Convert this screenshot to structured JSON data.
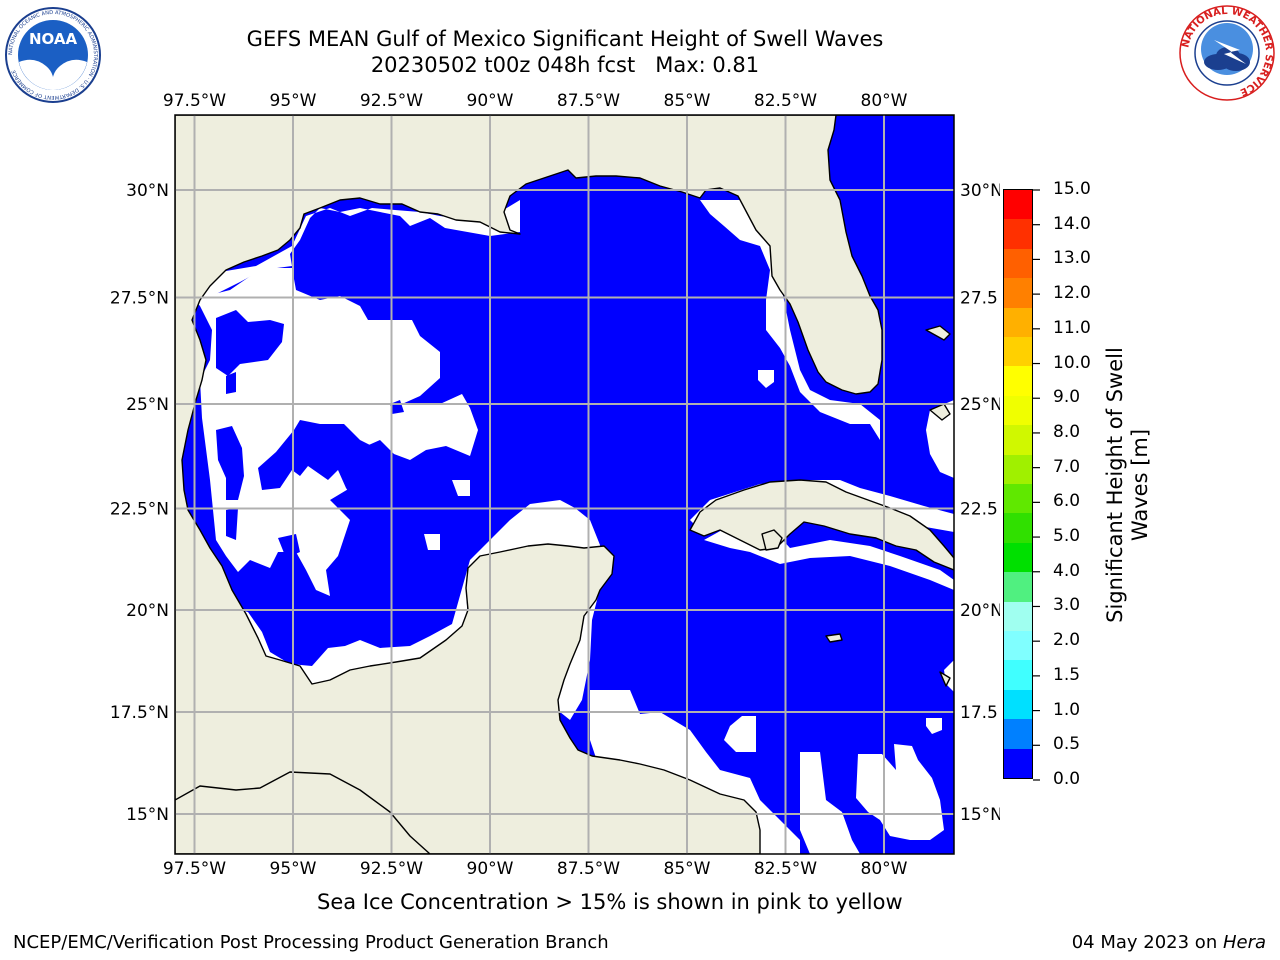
{
  "title": {
    "line1": "GEFS MEAN Gulf of Mexico Significant Height of Swell Waves",
    "line2": "20230502 t00z 048h fcst   Max: 0.81"
  },
  "logos": {
    "noaa": {
      "text": "NOAA",
      "ring_text": "NATIONAL OCEANIC AND ATMOSPHERIC ADMINISTRATION · U.S. DEPARTMENT OF COMMERCE"
    },
    "nws": {
      "ring_text": "NATIONAL WEATHER SERVICE"
    }
  },
  "map": {
    "lon_labels": [
      "97.5°W",
      "95°W",
      "92.5°W",
      "90°W",
      "87.5°W",
      "85°W",
      "82.5°W",
      "80°W"
    ],
    "lat_labels_left": [
      "30°N",
      "27.5°N",
      "25°N",
      "22.5°N",
      "20°N",
      "17.5°N",
      "15°N"
    ],
    "lat_labels_right": [
      "30°N",
      "27.5",
      "25°N",
      "22.5",
      "20°N",
      "17.5",
      "15°N"
    ],
    "colors": {
      "land": "#eeeede",
      "swell_lt_0_5": "#0000ff",
      "swell_0_5_to_1_0": "#0080ff",
      "no_data": "#ffffff",
      "grid": "#b0b0b0"
    }
  },
  "colorbar": {
    "labels": [
      "15.0",
      "14.0",
      "13.0",
      "12.0",
      "11.0",
      "10.0",
      "9.0",
      "8.0",
      "7.0",
      "6.0",
      "5.0",
      "4.0",
      "3.0",
      "2.0",
      "1.5",
      "1.0",
      "0.5",
      "0.0"
    ],
    "colors_bottom_to_top": [
      "#0000ff",
      "#0080ff",
      "#00e0ff",
      "#40ffff",
      "#80ffff",
      "#a0fff0",
      "#50f080",
      "#00e000",
      "#30e000",
      "#60e800",
      "#a0f000",
      "#d0f800",
      "#f0ff00",
      "#ffff00",
      "#ffd000",
      "#ffb000",
      "#ff8000",
      "#ff6000",
      "#ff3000",
      "#ff0000"
    ],
    "title": "Significant Height of Swell Waves [m]"
  },
  "footer": {
    "note": "Sea Ice Concentration > 15% is shown in pink to yellow",
    "left": "NCEP/EMC/Verification Post Processing Product Generation Branch",
    "date": "04 May 2023 on ",
    "host": "Hera"
  }
}
